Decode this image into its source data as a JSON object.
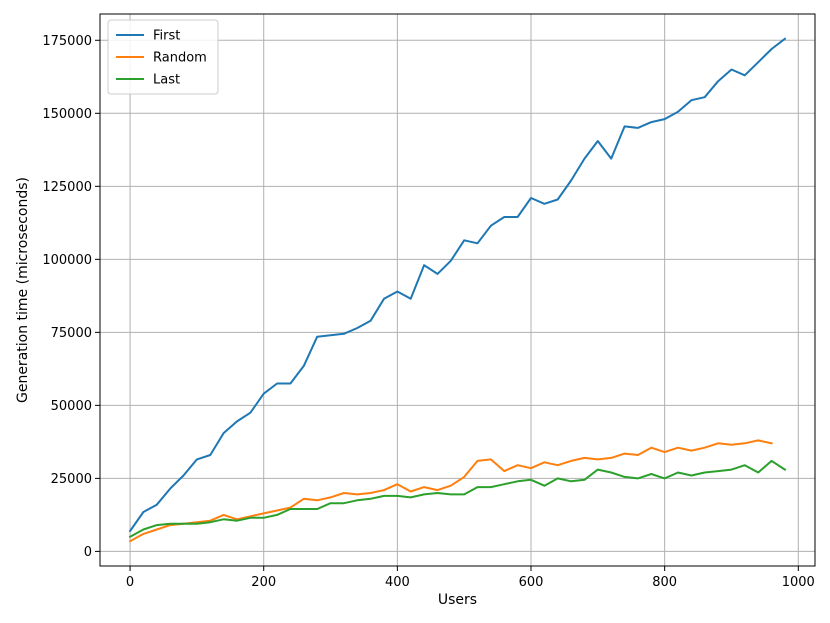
{
  "chart_data": {
    "type": "line",
    "xlabel": "Users",
    "ylabel": "Generation time (microseconds)",
    "xlim": [
      -45,
      1025
    ],
    "ylim": [
      -5000,
      184000
    ],
    "xticks": [
      0,
      200,
      400,
      600,
      800,
      1000
    ],
    "yticks": [
      0,
      25000,
      50000,
      75000,
      100000,
      125000,
      150000,
      175000
    ],
    "grid": true,
    "legend_position": "top-left",
    "x": [
      0,
      20,
      40,
      60,
      80,
      100,
      120,
      140,
      160,
      180,
      200,
      220,
      240,
      260,
      280,
      300,
      320,
      340,
      360,
      380,
      400,
      420,
      440,
      460,
      480,
      500,
      520,
      540,
      560,
      580,
      600,
      620,
      640,
      660,
      680,
      700,
      720,
      740,
      760,
      780,
      800,
      820,
      840,
      860,
      880,
      900,
      920,
      940,
      960,
      980
    ],
    "series": [
      {
        "name": "First",
        "color": "#1f77b4",
        "values": [
          7000,
          13500,
          16000,
          21500,
          26000,
          31500,
          33000,
          40500,
          44500,
          47500,
          54000,
          57500,
          57500,
          63500,
          73500,
          74000,
          74500,
          76500,
          79000,
          86500,
          89000,
          86500,
          98000,
          95000,
          99500,
          106500,
          105500,
          111500,
          114500,
          114500,
          121000,
          119000,
          120500,
          127000,
          134500,
          140500,
          134500,
          145500,
          145000,
          147000,
          148000,
          150500,
          154500,
          155500,
          161000,
          165000,
          163000,
          167500,
          172000,
          175500
        ]
      },
      {
        "name": "Random",
        "color": "#ff7f0e",
        "values": [
          3500,
          6000,
          7500,
          9000,
          9500,
          10000,
          10500,
          12500,
          11000,
          12000,
          13000,
          14000,
          15000,
          18000,
          17500,
          18500,
          20000,
          19500,
          20000,
          21000,
          23000,
          20500,
          22000,
          21000,
          22500,
          25500,
          31000,
          31500,
          27500,
          29500,
          28500,
          30500,
          29500,
          31000,
          32000,
          31500,
          32000,
          33500,
          33000,
          35500,
          34000,
          35500,
          34500,
          35500,
          37000,
          36500,
          37000,
          38000,
          37000,
          null
        ]
      },
      {
        "name": "Last",
        "color": "#2ca02c",
        "values": [
          5000,
          7500,
          9000,
          9500,
          9500,
          9500,
          10000,
          11000,
          10500,
          11500,
          11500,
          12500,
          14500,
          14500,
          14500,
          16500,
          16500,
          17500,
          18000,
          19000,
          19000,
          18500,
          19500,
          20000,
          19500,
          19500,
          22000,
          22000,
          23000,
          24000,
          24500,
          22500,
          25000,
          24000,
          24500,
          28000,
          27000,
          25500,
          25000,
          26500,
          25000,
          27000,
          26000,
          27000,
          27500,
          28000,
          29500,
          27000,
          31000,
          28000
        ]
      }
    ]
  }
}
